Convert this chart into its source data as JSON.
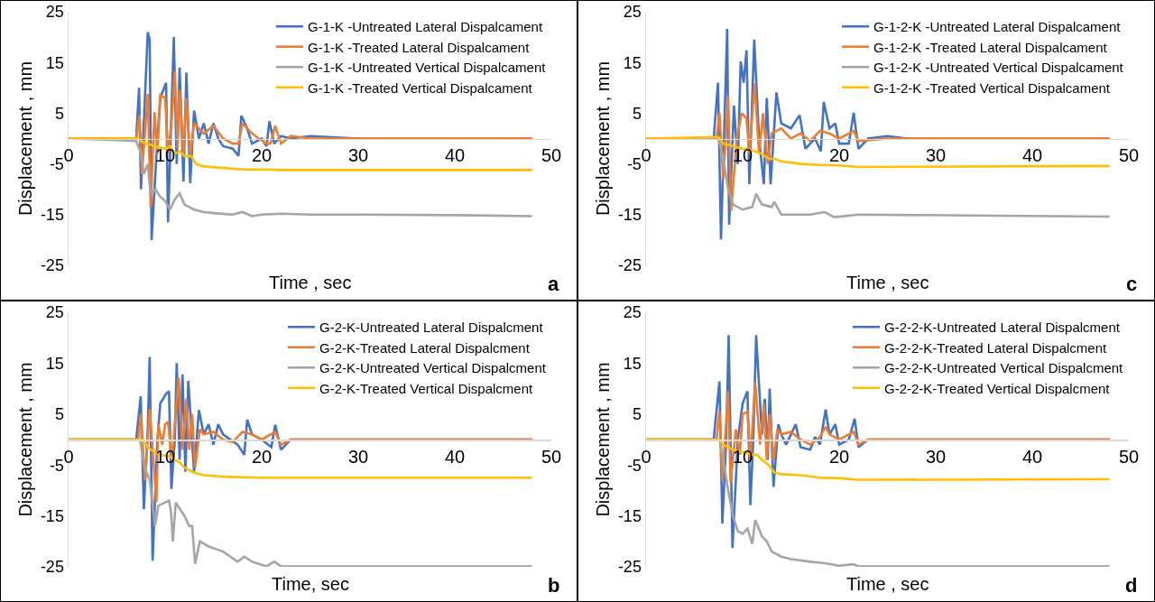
{
  "chart_data": [
    {
      "type": "line",
      "xlabel": "Time , sec",
      "ylabel": "Displacement , mm",
      "annotations": [
        "a"
      ],
      "xlim": [
        0,
        50
      ],
      "xticks": [
        0,
        10,
        20,
        30,
        40,
        50
      ],
      "ylim": [
        -25,
        25
      ],
      "yticks": [
        -25,
        -15,
        -5,
        5,
        15,
        25
      ],
      "grid": false,
      "legend": "top right",
      "marker": "none",
      "line_style": "solid",
      "series": [
        {
          "name": "G-1-K -Untreated Lateral Dispalcament",
          "color": "#4472c4",
          "x": [
            0,
            7,
            7.3,
            7.5,
            8.2,
            8.4,
            8.6,
            9.2,
            9.5,
            10.1,
            10.3,
            10.9,
            11.2,
            11.5,
            11.9,
            12.2,
            12.6,
            13.0,
            13.5,
            14,
            14.5,
            15,
            15.5,
            16,
            17,
            17.6,
            17.9,
            18.5,
            19,
            20,
            20.5,
            20.8,
            21.3,
            22,
            23,
            25,
            30,
            48
          ],
          "values": [
            0,
            0,
            10,
            -10,
            21,
            19.5,
            -20,
            0,
            8,
            11,
            -16.5,
            20,
            -5,
            14,
            -8.5,
            13,
            -8.8,
            5.5,
            0,
            3,
            -1,
            3,
            0,
            -1.5,
            -2,
            -3.4,
            4.5,
            2,
            -1,
            0,
            -1.5,
            3.4,
            -1,
            0.5,
            0,
            0.5,
            0,
            0
          ]
        },
        {
          "name": "G-1-K -Treated Lateral Dispalcament",
          "color": "#ed7d31",
          "x": [
            0,
            7,
            7.35,
            7.6,
            8.2,
            8.5,
            8.9,
            9.2,
            9.5,
            10.0,
            10.3,
            10.7,
            11.0,
            11.3,
            11.5,
            11.9,
            12.2,
            12.6,
            13.0,
            14,
            15,
            16,
            17,
            17.6,
            18,
            19,
            19.7,
            20.5,
            20.9,
            21.4,
            22,
            23,
            25,
            48
          ],
          "values": [
            0,
            0,
            4.6,
            -7,
            8.8,
            -13.6,
            5.2,
            -3,
            8.6,
            8,
            -3,
            4,
            13.3,
            -2,
            9.6,
            -3,
            8,
            -3.5,
            3,
            1,
            2.5,
            0,
            -1,
            -1,
            3,
            1,
            0,
            -1,
            -1,
            2.5,
            -1,
            0.5,
            0,
            0
          ]
        },
        {
          "name": "G-1-K -Untreated Vertical Dispalcament",
          "color": "#a5a5a5",
          "x": [
            0,
            5,
            7,
            7.5,
            7.8,
            8.2,
            8.5,
            9,
            9.5,
            10,
            10.5,
            11,
            11.5,
            12,
            13,
            14,
            15,
            17,
            18,
            19,
            20,
            22,
            25,
            30,
            40,
            48
          ],
          "values": [
            0,
            -0.3,
            -0.5,
            -3,
            -7,
            -5,
            -11,
            -10,
            -11.5,
            -12.3,
            -14,
            -12,
            -10.8,
            -13,
            -14,
            -14.5,
            -14.7,
            -15,
            -14.5,
            -15.3,
            -15,
            -14.8,
            -15,
            -15,
            -15.1,
            -15.3
          ]
        },
        {
          "name": "G-1-K -Treated Vertical Dispalcament",
          "color": "#ffc000",
          "x": [
            0,
            7.3,
            7.5,
            8,
            9,
            10,
            10.5,
            11,
            11.5,
            12,
            12.7,
            13.2,
            14,
            16,
            18,
            20,
            22,
            25,
            48
          ],
          "values": [
            0,
            0,
            -0.5,
            -1,
            -1.5,
            -2,
            -1.5,
            -3,
            -2.5,
            -3.5,
            -3.5,
            -5,
            -5.5,
            -5.8,
            -6.1,
            -6.1,
            -6.2,
            -6.2,
            -6.2
          ]
        }
      ]
    },
    {
      "type": "line",
      "xlabel": "Time , sec",
      "ylabel": "Displacement , mm",
      "annotations": [
        "c"
      ],
      "xlim": [
        0,
        50
      ],
      "xticks": [
        0,
        10,
        20,
        30,
        40,
        50
      ],
      "ylim": [
        -25,
        25
      ],
      "yticks": [
        -25,
        -15,
        -5,
        5,
        15,
        25
      ],
      "grid": false,
      "legend": "top right",
      "marker": "none",
      "line_style": "solid",
      "series": [
        {
          "name": "G-1-2-K -Untreated Lateral Dispalcament",
          "color": "#4472c4",
          "x": [
            0,
            7,
            7.45,
            7.76,
            8.4,
            8.6,
            9.1,
            9.5,
            9.8,
            10.1,
            10.4,
            10.7,
            11.2,
            11.7,
            12.2,
            12.5,
            12.9,
            13.5,
            14,
            15,
            15.9,
            16.5,
            17.5,
            18.1,
            18.4,
            19,
            19.6,
            20,
            21,
            21.5,
            22,
            23,
            25,
            27,
            48
          ],
          "values": [
            0,
            0,
            11,
            -19.9,
            21.6,
            -17,
            6.5,
            -5,
            15.2,
            11,
            17.4,
            -9,
            19.5,
            0,
            -9,
            8,
            -9,
            9.1,
            3,
            2,
            4.6,
            -2,
            0,
            -2.5,
            7.2,
            2,
            3,
            -1,
            -1,
            5.1,
            -2,
            0,
            0.5,
            0,
            0
          ]
        },
        {
          "name": "G-1-2-K -Treated Lateral Dispalcament",
          "color": "#ed7d31",
          "x": [
            0,
            7.3,
            7.6,
            8,
            8.5,
            8.8,
            9.4,
            9.9,
            10.4,
            10.7,
            11.25,
            11.7,
            12.1,
            12.6,
            13,
            14,
            15,
            16,
            17,
            18,
            19,
            20,
            21.5,
            22,
            25,
            48
          ],
          "values": [
            0,
            0,
            5,
            -8,
            8.4,
            -14.3,
            0,
            5,
            4,
            -3,
            10.9,
            -3,
            5,
            -5,
            1,
            2,
            0,
            1,
            -0.5,
            1.5,
            1,
            0,
            1.5,
            -0.5,
            0,
            0
          ]
        },
        {
          "name": "G-1-2-K -Untreated Vertical Dispalcament",
          "color": "#a5a5a5",
          "x": [
            0,
            7.5,
            8,
            8.5,
            9,
            10,
            11,
            11.4,
            12,
            13,
            13.3,
            14,
            17,
            18.5,
            19.5,
            22,
            48
          ],
          "values": [
            0,
            0,
            -4,
            -10,
            -13,
            -14,
            -13.5,
            -10.9,
            -13,
            -13.5,
            -12.5,
            -15,
            -15,
            -14.5,
            -15.5,
            -15,
            -15.4
          ]
        },
        {
          "name": "G-1-2-K -Treated Vertical Dispalcament",
          "color": "#ffc000",
          "x": [
            0,
            7.5,
            8,
            9,
            10,
            11,
            12,
            12.7,
            13.3,
            14,
            16,
            18,
            20,
            22,
            48
          ],
          "values": [
            0,
            0.3,
            -1,
            -1.5,
            -2,
            -2.3,
            -3,
            -4,
            -4,
            -4.5,
            -5,
            -5.2,
            -5.3,
            -5.6,
            -5.4
          ]
        }
      ]
    },
    {
      "type": "line",
      "xlabel": "Time, sec",
      "ylabel": "Displacement , mm",
      "annotations": [
        "b"
      ],
      "xlim": [
        0,
        50
      ],
      "xticks": [
        0,
        10,
        20,
        30,
        40,
        50
      ],
      "ylim": [
        -25,
        25
      ],
      "yticks": [
        -25,
        -15,
        -5,
        5,
        15,
        25
      ],
      "grid": false,
      "legend": "top right",
      "marker": "none",
      "line_style": "solid",
      "series": [
        {
          "name": "G-2-K-Untreated Lateral Dispalcment",
          "color": "#4472c4",
          "x": [
            0,
            7,
            7.47,
            7.8,
            8.2,
            8.4,
            8.7,
            9.2,
            9.5,
            10.1,
            10.4,
            10.65,
            11.0,
            11.2,
            11.5,
            11.8,
            12.1,
            12.4,
            13.0,
            13.5,
            14,
            14.5,
            15,
            15.5,
            16,
            17.5,
            18.2,
            18.5,
            19,
            20,
            21,
            21.4,
            22,
            23,
            25,
            48
          ],
          "values": [
            0,
            0,
            8.5,
            -13.7,
            2,
            16.2,
            -23.8,
            0,
            7.1,
            9,
            9.5,
            -9.7,
            0,
            15,
            -4,
            12.8,
            -6.3,
            11.5,
            -6.3,
            5.8,
            1,
            3,
            -1,
            3,
            1,
            -1,
            -3,
            3.9,
            1,
            0,
            -1.5,
            2.9,
            -2,
            0,
            0,
            0
          ]
        },
        {
          "name": "G-2-K-Treated Lateral Dispalcment",
          "color": "#ed7d31",
          "x": [
            0,
            7.2,
            7.5,
            7.9,
            8.4,
            9.1,
            9.3,
            9.7,
            10,
            10.3,
            10.7,
            11.4,
            11.8,
            12.2,
            12.5,
            12.8,
            13.1,
            13.6,
            14,
            15,
            16,
            17,
            18,
            19,
            20,
            21.4,
            22,
            23,
            48
          ],
          "values": [
            0,
            0,
            5,
            -8,
            6,
            -12.3,
            3,
            -1,
            3,
            3.5,
            -4,
            12.2,
            -2,
            8,
            -2,
            5,
            -5.5,
            2,
            1,
            1.5,
            0,
            -0.5,
            1.5,
            1,
            0,
            1.5,
            -1,
            0,
            0
          ]
        },
        {
          "name": "G-2-K-Untreated Vertical Dispalcment",
          "color": "#a5a5a5",
          "x": [
            0,
            7.4,
            7.8,
            8.4,
            8.95,
            9.3,
            10.4,
            10.6,
            10.8,
            11.1,
            12,
            12.5,
            12.8,
            13.1,
            13.6,
            14.5,
            16,
            17.5,
            18.2,
            19,
            20.5,
            21.3,
            22,
            48
          ],
          "values": [
            0,
            0,
            -5,
            -8,
            -17,
            -13,
            -12,
            -14,
            -20,
            -12.4,
            -15,
            -17,
            -17,
            -24.4,
            -20,
            -21,
            -22,
            -24,
            -23,
            -24,
            -24.9,
            -24,
            -24.9,
            -24.9
          ]
        },
        {
          "name": "G-2-K-Treated Vertical Dispalcment",
          "color": "#ffc000",
          "x": [
            0,
            7.5,
            8,
            8.5,
            9,
            9.5,
            10.5,
            11,
            11.5,
            12,
            13,
            14,
            16,
            20,
            48
          ],
          "values": [
            0,
            0,
            -1,
            -2,
            -2.5,
            -3,
            -3.3,
            -4,
            -4.5,
            -5.5,
            -6.5,
            -7,
            -7.3,
            -7.5,
            -7.5
          ]
        }
      ]
    },
    {
      "type": "line",
      "xlabel": "Time , sec",
      "ylabel": "Displacement , mm",
      "annotations": [
        "d"
      ],
      "xlim": [
        0,
        50
      ],
      "xticks": [
        0,
        10,
        20,
        30,
        40,
        50
      ],
      "ylim": [
        -25,
        25
      ],
      "yticks": [
        -25,
        -15,
        -5,
        5,
        15,
        25
      ],
      "grid": false,
      "legend": "top right",
      "marker": "none",
      "line_style": "solid",
      "series": [
        {
          "name": "G-2-2-K-Untreated Lateral Dispalcment",
          "color": "#4472c4",
          "x": [
            0,
            7,
            7.6,
            7.9,
            8.3,
            8.55,
            8.95,
            9.5,
            10,
            10.5,
            10.8,
            11.1,
            11.4,
            12,
            12.3,
            12.6,
            12.8,
            13.2,
            13.7,
            14,
            14.5,
            15,
            15.5,
            16,
            17,
            17.5,
            18,
            18.6,
            19,
            19.6,
            20,
            21,
            21.6,
            22,
            23,
            48
          ],
          "values": [
            0,
            0,
            11.4,
            -16.5,
            0,
            20.5,
            -21.3,
            0,
            7.1,
            9.5,
            -12.9,
            0,
            20.5,
            1,
            8,
            -4,
            10,
            -9.3,
            3,
            1,
            -1,
            1,
            3,
            -1.5,
            -2,
            0.5,
            -1,
            5.9,
            1,
            3,
            -1,
            0,
            4.1,
            -1.5,
            0,
            0
          ]
        },
        {
          "name": "G-2-2-K-Treated Lateral Dispalcment",
          "color": "#ed7d31",
          "x": [
            0,
            7.3,
            7.6,
            7.9,
            8.5,
            8.75,
            9.3,
            9.7,
            10,
            10.5,
            10.8,
            11.3,
            11.8,
            12.2,
            12.5,
            12.8,
            13.2,
            13.6,
            14,
            15,
            16,
            17,
            18,
            18.6,
            19,
            20,
            21.5,
            22,
            23,
            48
          ],
          "values": [
            0,
            0,
            5.5,
            -8,
            9.5,
            -8.5,
            2,
            -3,
            5,
            5.5,
            -4,
            11.2,
            -1,
            7,
            -4,
            5,
            -4,
            2,
            1,
            1.5,
            0,
            -1,
            0.5,
            2.5,
            1,
            0,
            1.5,
            -1,
            0,
            0
          ]
        },
        {
          "name": "G-2-2-K-Untreated Vertical Dispalcment",
          "color": "#a5a5a5",
          "x": [
            0,
            7.6,
            8,
            8.5,
            9,
            9.5,
            10,
            10.5,
            11,
            11.3,
            12,
            12.5,
            13,
            14,
            15,
            17,
            18.5,
            20,
            21.5,
            22,
            48
          ],
          "values": [
            0,
            0,
            -4,
            -10,
            -15,
            -18,
            -18.5,
            -17.5,
            -20.5,
            -15.8,
            -19,
            -20,
            -22,
            -23,
            -23.5,
            -24,
            -24.3,
            -24.8,
            -24.5,
            -24.9,
            -24.9
          ]
        },
        {
          "name": "G-2-2-K-Treated Vertical Dispalcment",
          "color": "#ffc000",
          "x": [
            0,
            7.5,
            8,
            9,
            10,
            11,
            11.5,
            12,
            12.7,
            13.3,
            14,
            16,
            18,
            20,
            22,
            48
          ],
          "values": [
            0,
            0,
            -1,
            -2,
            -2.5,
            -3,
            -3,
            -4,
            -5,
            -6.5,
            -6.8,
            -7,
            -7.5,
            -7.6,
            -7.9,
            -7.8
          ]
        }
      ]
    }
  ]
}
